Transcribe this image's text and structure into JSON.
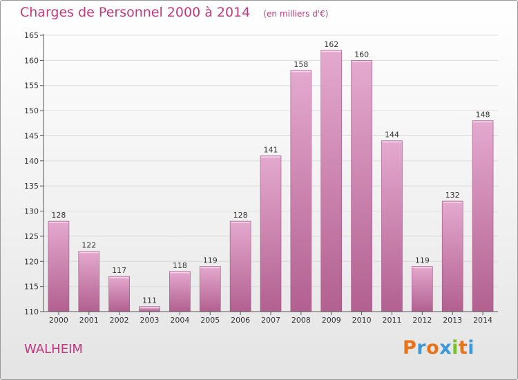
{
  "chart_data": {
    "type": "bar",
    "title": "Charges de Personnel 2000 à 2014",
    "subtitle": "(en milliers d'€)",
    "categories": [
      "2000",
      "2001",
      "2002",
      "2003",
      "2004",
      "2005",
      "2006",
      "2007",
      "2008",
      "2009",
      "2010",
      "2011",
      "2012",
      "2013",
      "2014"
    ],
    "values": [
      128,
      122,
      117,
      111,
      118,
      119,
      128,
      141,
      158,
      162,
      160,
      144,
      119,
      132,
      148
    ],
    "ylim": [
      110,
      165
    ],
    "yticks": [
      110,
      115,
      120,
      125,
      130,
      135,
      140,
      145,
      150,
      155,
      160,
      165
    ],
    "xlabel": "",
    "ylabel": "",
    "grid": true
  },
  "footer": {
    "commune": "WALHEIM",
    "brand": "Proxiti"
  },
  "colors": {
    "accent": "#c0387e",
    "bar_top": "#e4a9cf",
    "bar_bottom": "#b2608f",
    "bar_border": "#9e5283",
    "brand_letters": [
      "#e8731a",
      "#3a9ad9",
      "#e8731a",
      "#3a9ad9",
      "#7bbf2a",
      "#e8731a",
      "#3a9ad9"
    ]
  }
}
